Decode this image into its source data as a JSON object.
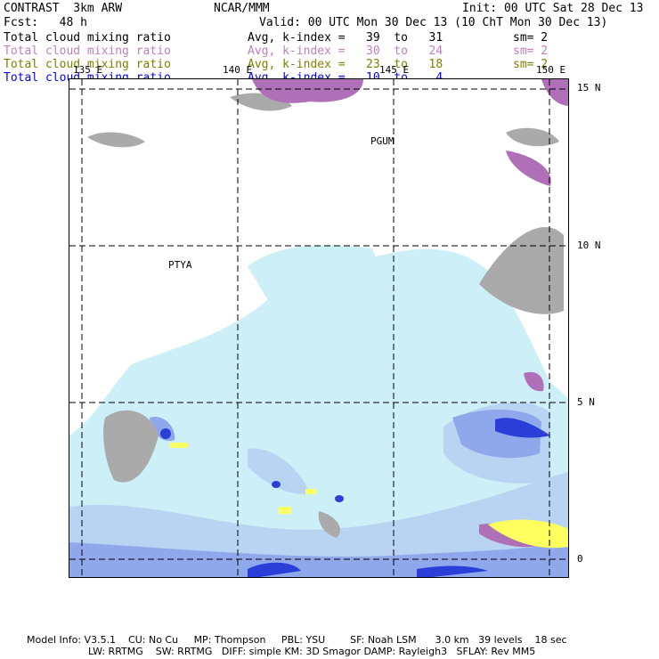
{
  "header": {
    "model": "CONTRAST  3km ARW",
    "org": "NCAR/MMM",
    "init": "Init: 00 UTC Sat 28 Dec 13",
    "fcst": "Fcst:   48 h",
    "valid": "Valid: 00 UTC Mon 30 Dec 13 (10 ChT Mon 30 Dec 13)"
  },
  "fields": [
    {
      "name": "Total cloud mixing ratio",
      "avg": "Avg, k-index =   39  to   31",
      "sm": "sm= 2",
      "color": "#000000"
    },
    {
      "name": "Total cloud mixing ratio",
      "avg": "Avg, k-index =   30  to   24",
      "sm": "sm= 2",
      "color": "#c080c0"
    },
    {
      "name": "Total cloud mixing ratio",
      "avg": "Avg, k-index =   23  to   18",
      "sm": "sm= 2",
      "color": "#808000"
    },
    {
      "name": "Total cloud mixing ratio",
      "avg": "Avg, k-index =   10  to    4",
      "sm": "",
      "color": "#0000ff"
    }
  ],
  "map": {
    "lon_labels": [
      "135 E",
      "140 E",
      "145 E",
      "150 E"
    ],
    "lat_labels": [
      "15 N",
      "10 N",
      "5 N",
      "0"
    ],
    "stations": [
      "PGUM",
      "PTYA"
    ]
  },
  "footer": {
    "line1": "Model Info: V3.5.1    CU: No Cu     MP: Thompson     PBL: YSU        SF: Noah LSM      3.0 km   39 levels    18 sec",
    "line2": "LW: RRTMG    SW: RRTMG   DIFF: simple KM: 3D Smagor DAMP: Rayleigh3   SFLAY: Rev MM5"
  }
}
